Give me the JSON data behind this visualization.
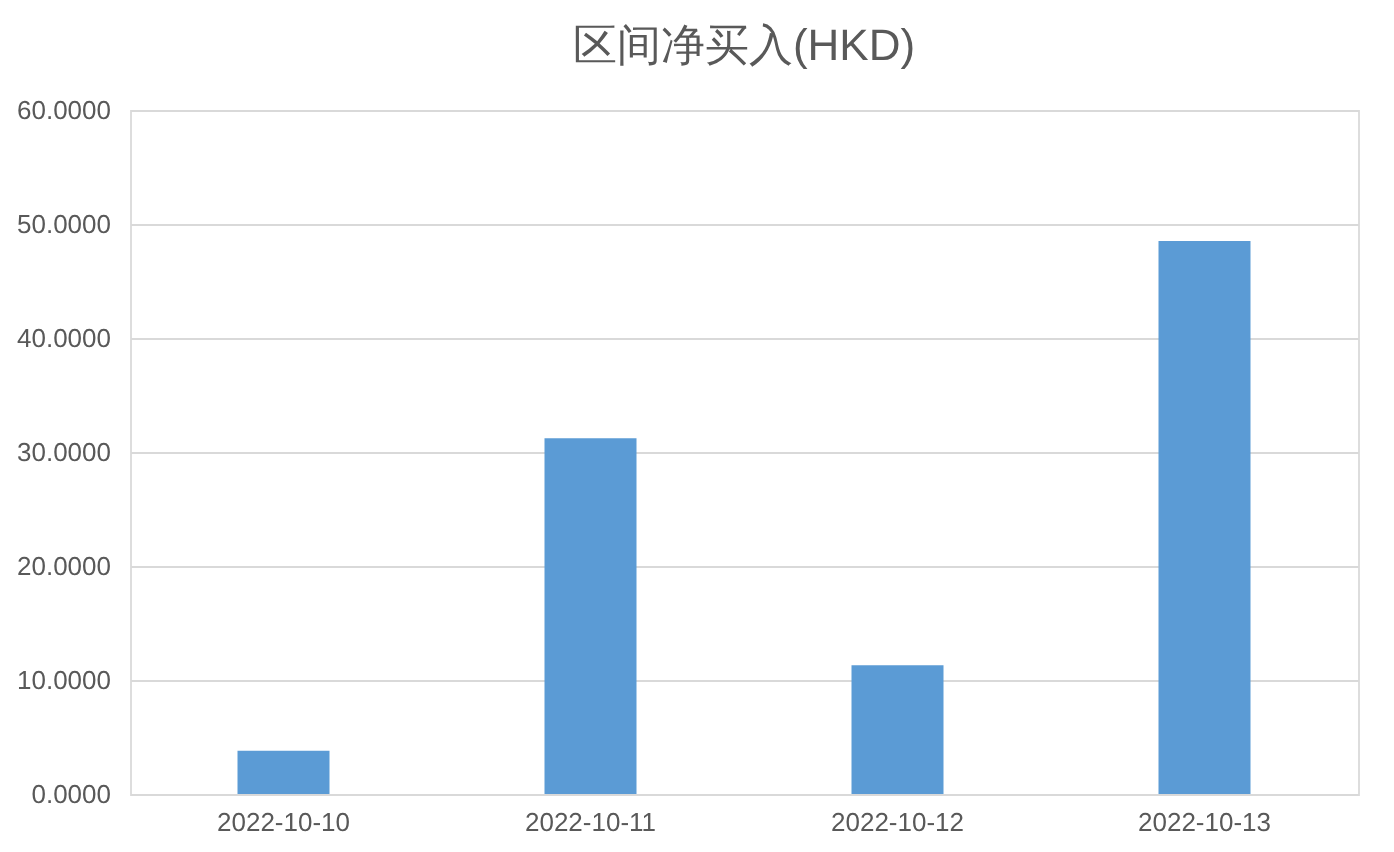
{
  "chart_data": {
    "type": "bar",
    "title": "区间净买入(HKD)",
    "categories": [
      "2022-10-10",
      "2022-10-11",
      "2022-10-12",
      "2022-10-13"
    ],
    "values": [
      3.8,
      31.2,
      11.3,
      48.5
    ],
    "color": "#5b9bd5",
    "ylim": [
      0,
      60
    ],
    "yticks": [
      {
        "value": 0,
        "label": "0.0000"
      },
      {
        "value": 10,
        "label": "10.0000"
      },
      {
        "value": 20,
        "label": "20.0000"
      },
      {
        "value": 30,
        "label": "30.0000"
      },
      {
        "value": 40,
        "label": "40.0000"
      },
      {
        "value": 50,
        "label": "50.0000"
      },
      {
        "value": 60,
        "label": "60.0000"
      }
    ],
    "grid": "y"
  }
}
